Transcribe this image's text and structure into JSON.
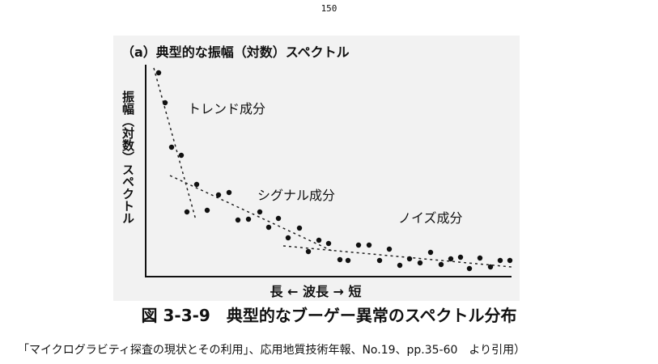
{
  "page_number": "150",
  "figure": {
    "title": "（a）典型的な振幅（対数）スペクトル",
    "y_label": "振幅（対数）スペクトル",
    "trend_label": "トレンド成分",
    "signal_label": "シグナル成分",
    "noise_label": "ノイズ成分",
    "x_label": "長 ← 波長 → 短"
  },
  "caption": "図 3-3-9　典型的なブーゲー異常のスペクトル分布",
  "source": "「マイクログラビティ探査の現状とその利用」、応用地質技術年報、No.19、pp.35-60　より引用）"
}
